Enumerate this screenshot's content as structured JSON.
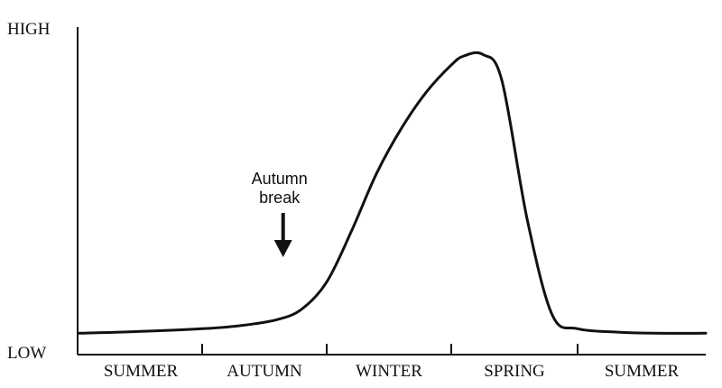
{
  "chart_data": {
    "type": "line",
    "title": "",
    "xlabel": "",
    "ylabel": "",
    "y_tick_labels": {
      "high": "HIGH",
      "low": "LOW"
    },
    "ylim": [
      0,
      100
    ],
    "xlim": [
      0,
      5
    ],
    "categories": [
      "SUMMER",
      "AUTUMN",
      "WINTER",
      "SPRING",
      "SUMMER"
    ],
    "grid": false,
    "annotation": {
      "line1": "Autumn",
      "line2": "break",
      "x": 1.65,
      "arrow": "down"
    },
    "series": [
      {
        "x": [
          0.0,
          0.5,
          1.0,
          1.3,
          1.6,
          1.8,
          2.0,
          2.2,
          2.4,
          2.6,
          2.8,
          3.0,
          3.1,
          3.25,
          3.4,
          3.6,
          3.8,
          4.0,
          4.3,
          4.6,
          5.0
        ],
        "values": [
          2,
          2.6,
          3.5,
          4.5,
          6.5,
          10,
          19,
          36,
          55,
          70,
          82,
          91,
          94,
          94.5,
          86,
          40,
          8,
          3.5,
          2.4,
          2,
          2
        ]
      }
    ]
  }
}
